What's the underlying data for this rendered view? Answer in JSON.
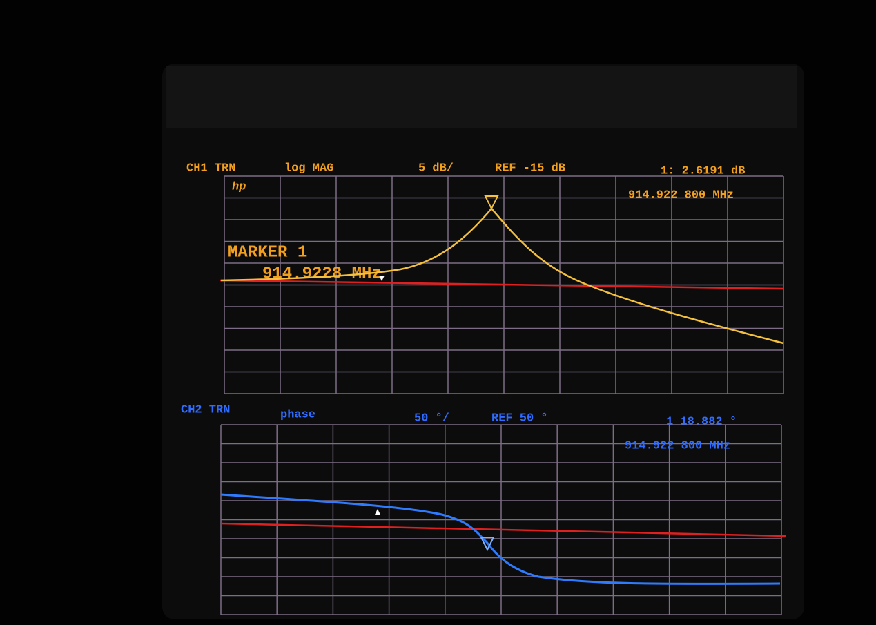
{
  "channel1": {
    "channel": "CH1 TRN",
    "format": "log MAG",
    "scale": "5 dB/",
    "reference": "REF -15 dB",
    "marker_readout": "1: 2.6191 dB",
    "marker_frequency": "914.922 800 MHz",
    "logo": "hp",
    "marker_title": "MARKER 1",
    "marker_value": "914.9228 MHz"
  },
  "channel2": {
    "channel": "CH2 TRN",
    "format": "phase",
    "scale": "50 °/",
    "reference": "REF 50 °",
    "marker_readout": "1  18.882 °",
    "marker_frequency": "914.922 800 MHz"
  }
}
